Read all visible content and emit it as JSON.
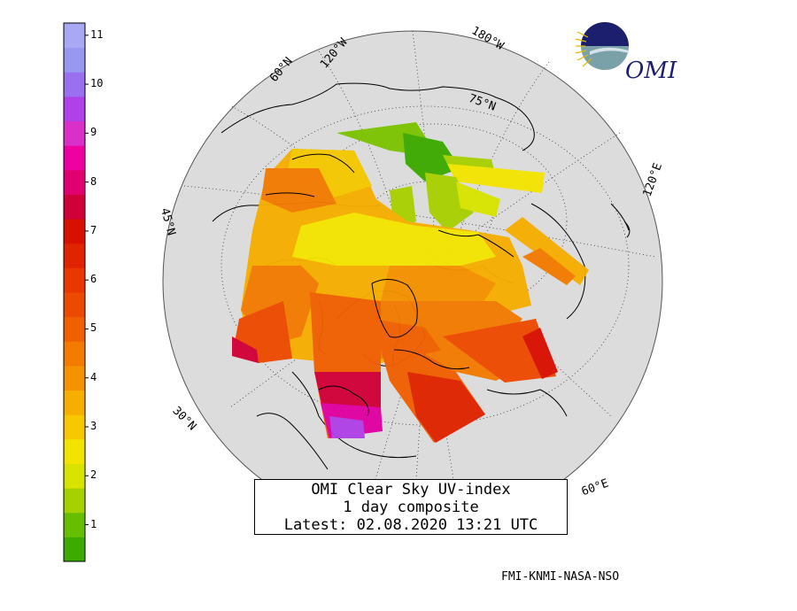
{
  "caption": {
    "line1": "OMI Clear Sky UV-index",
    "line2": "1 day composite",
    "line3": "Latest: 02.08.2020 13:21 UTC"
  },
  "credits": "FMI-KNMI-NASA-NSO",
  "logo": {
    "text": "OMI",
    "icon": "omi-globe-logo"
  },
  "legend": {
    "labels": [
      "1",
      "2",
      "3",
      "4",
      "5",
      "6",
      "7",
      "8",
      "9",
      "10",
      "11"
    ],
    "colors": [
      "#3daa00",
      "#66be00",
      "#a7d000",
      "#d8e400",
      "#f3e400",
      "#f7c800",
      "#f6ae00",
      "#f49200",
      "#f27b00",
      "#f06000",
      "#ec4a00",
      "#e83800",
      "#e02300",
      "#d81000",
      "#d00038",
      "#e00070",
      "#ee00a0",
      "#d830c8",
      "#b040e8",
      "#9a70f0",
      "#9898f0",
      "#a8a8f4"
    ]
  },
  "graticule_labels": {
    "lon_120w": "120°W",
    "lon_180w": "180°W",
    "lon_120e": "120°E",
    "lon_60e": "60°E",
    "lat_60n": "60°N",
    "lat_75n": "75°N",
    "lat_45n": "45°N",
    "lat_30n": "30°N"
  }
}
